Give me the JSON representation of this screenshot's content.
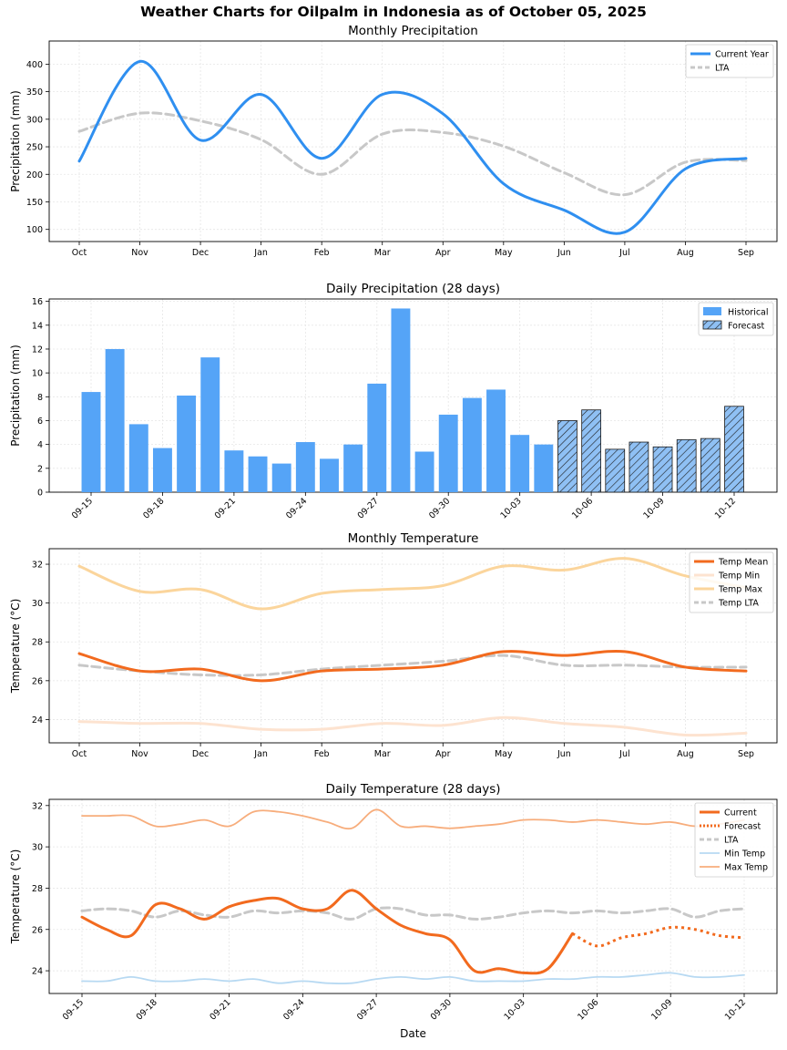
{
  "figure_title": "Weather Charts for Oilpalm in Indonesia as of October 05, 2025",
  "colors": {
    "current_blue": "#2f8ff0",
    "lta_grey": "#c8c8c8",
    "bar_blue": "#55a4f7",
    "forecast_hatch_fill": "#8fc0f4",
    "temp_mean": "#f26a1e",
    "temp_min": "#fde3d0",
    "temp_max": "#fbd59c",
    "daily_min": "#b7d9f2",
    "daily_max": "#f7ad7c"
  },
  "chart_data": [
    {
      "id": "monthly_precip",
      "type": "line",
      "title": "Monthly Precipitation",
      "xlabel": "",
      "ylabel": "Precipitation (mm)",
      "categories": [
        "Oct",
        "Nov",
        "Dec",
        "Jan",
        "Feb",
        "Mar",
        "Apr",
        "May",
        "Jun",
        "Jul",
        "Aug",
        "Sep"
      ],
      "ylim": [
        78,
        442
      ],
      "yticks": [
        100,
        150,
        200,
        250,
        300,
        350,
        400
      ],
      "legend_position": "top-right",
      "series": [
        {
          "name": "Current Year",
          "style": "solid",
          "values": [
            224,
            405,
            262,
            345,
            229,
            345,
            310,
            183,
            135,
            95,
            210,
            229
          ]
        },
        {
          "name": "LTA",
          "style": "dashed",
          "values": [
            278,
            311,
            297,
            263,
            200,
            273,
            276,
            251,
            203,
            163,
            222,
            225
          ]
        }
      ]
    },
    {
      "id": "daily_precip",
      "type": "bar",
      "title": "Daily Precipitation (28 days)",
      "xlabel": "",
      "ylabel": "Precipitation (mm)",
      "ylim": [
        0,
        16.2
      ],
      "yticks": [
        0,
        2,
        4,
        6,
        8,
        10,
        12,
        14,
        16
      ],
      "tick_labels": [
        "09-15",
        "09-18",
        "09-21",
        "09-24",
        "09-27",
        "09-30",
        "10-03",
        "10-06",
        "10-09",
        "10-12"
      ],
      "legend_position": "top-right",
      "legend": [
        "Historical",
        "Forecast"
      ],
      "days": [
        "09-15",
        "09-16",
        "09-17",
        "09-18",
        "09-19",
        "09-20",
        "09-21",
        "09-22",
        "09-23",
        "09-24",
        "09-25",
        "09-26",
        "09-27",
        "09-28",
        "09-29",
        "09-30",
        "10-01",
        "10-02",
        "10-03",
        "10-04",
        "10-05",
        "10-06",
        "10-07",
        "10-08",
        "10-09",
        "10-10",
        "10-11",
        "10-12"
      ],
      "values": [
        8.4,
        12.0,
        5.7,
        3.7,
        8.1,
        11.3,
        3.5,
        3.0,
        2.4,
        4.2,
        2.8,
        4.0,
        9.1,
        15.4,
        3.4,
        6.5,
        7.9,
        8.6,
        4.8,
        4.0,
        6.0,
        6.9,
        3.6,
        4.2,
        3.8,
        4.4,
        4.5,
        7.2
      ],
      "forecast_start_index": 20
    },
    {
      "id": "monthly_temp",
      "type": "line",
      "title": "Monthly Temperature",
      "xlabel": "",
      "ylabel": "Temperature (°C)",
      "categories": [
        "Oct",
        "Nov",
        "Dec",
        "Jan",
        "Feb",
        "Mar",
        "Apr",
        "May",
        "Jun",
        "Jul",
        "Aug",
        "Sep"
      ],
      "ylim": [
        22.8,
        32.8
      ],
      "yticks": [
        24,
        26,
        28,
        30,
        32
      ],
      "legend_position": "top-right",
      "series": [
        {
          "name": "Temp Mean",
          "style": "solid-thick",
          "values": [
            27.4,
            26.5,
            26.6,
            26.0,
            26.5,
            26.6,
            26.8,
            27.5,
            27.3,
            27.5,
            26.7,
            26.5
          ]
        },
        {
          "name": "Temp Min",
          "style": "solid",
          "values": [
            23.9,
            23.8,
            23.8,
            23.5,
            23.5,
            23.8,
            23.7,
            24.1,
            23.8,
            23.6,
            23.2,
            23.3
          ]
        },
        {
          "name": "Temp Max",
          "style": "solid",
          "values": [
            31.9,
            30.6,
            30.7,
            29.7,
            30.5,
            30.7,
            30.9,
            31.9,
            31.7,
            32.3,
            31.4,
            30.8
          ]
        },
        {
          "name": "Temp LTA",
          "style": "dashed",
          "values": [
            26.8,
            26.5,
            26.3,
            26.3,
            26.6,
            26.8,
            27.0,
            27.3,
            26.8,
            26.8,
            26.7,
            26.7
          ]
        }
      ]
    },
    {
      "id": "daily_temp",
      "type": "line",
      "title": "Daily Temperature (28 days)",
      "xlabel": "Date",
      "ylabel": "Temperature (°C)",
      "ylim": [
        22.9,
        32.3
      ],
      "yticks": [
        24,
        26,
        28,
        30,
        32
      ],
      "tick_labels": [
        "09-15",
        "09-18",
        "09-21",
        "09-24",
        "09-27",
        "09-30",
        "10-03",
        "10-06",
        "10-09",
        "10-12"
      ],
      "legend_position": "top-right",
      "series": [
        {
          "name": "Current",
          "style": "solid-thick",
          "start": 0,
          "values": [
            26.6,
            26.0,
            25.7,
            27.2,
            27.0,
            26.5,
            27.1,
            27.4,
            27.5,
            27.0,
            27.0,
            27.9,
            27.0,
            26.2,
            25.8,
            25.5,
            24.0,
            24.1,
            23.9,
            24.1,
            25.8
          ]
        },
        {
          "name": "Forecast",
          "style": "dotted",
          "start": 20,
          "values": [
            25.8,
            25.2,
            25.6,
            25.8,
            26.1,
            26.0,
            25.7,
            25.6
          ]
        },
        {
          "name": "LTA",
          "style": "dashed",
          "start": 0,
          "values": [
            26.9,
            27.0,
            26.9,
            26.6,
            26.9,
            26.7,
            26.6,
            26.9,
            26.8,
            26.9,
            26.8,
            26.5,
            27.0,
            27.0,
            26.7,
            26.7,
            26.5,
            26.6,
            26.8,
            26.9,
            26.8,
            26.9,
            26.8,
            26.9,
            27.0,
            26.6,
            26.9,
            27.0
          ]
        },
        {
          "name": "Min Temp",
          "style": "solid-thin",
          "start": 0,
          "values": [
            23.5,
            23.5,
            23.7,
            23.5,
            23.5,
            23.6,
            23.5,
            23.6,
            23.4,
            23.5,
            23.4,
            23.4,
            23.6,
            23.7,
            23.6,
            23.7,
            23.5,
            23.5,
            23.5,
            23.6,
            23.6,
            23.7,
            23.7,
            23.8,
            23.9,
            23.7,
            23.7,
            23.8
          ]
        },
        {
          "name": "Max Temp",
          "style": "solid-thin",
          "start": 0,
          "values": [
            31.5,
            31.5,
            31.5,
            31.0,
            31.1,
            31.3,
            31.0,
            31.7,
            31.7,
            31.5,
            31.2,
            30.9,
            31.8,
            31.0,
            31.0,
            30.9,
            31.0,
            31.1,
            31.3,
            31.3,
            31.2,
            31.3,
            31.2,
            31.1,
            31.2,
            31.0,
            31.1,
            31.3
          ]
        }
      ]
    }
  ]
}
